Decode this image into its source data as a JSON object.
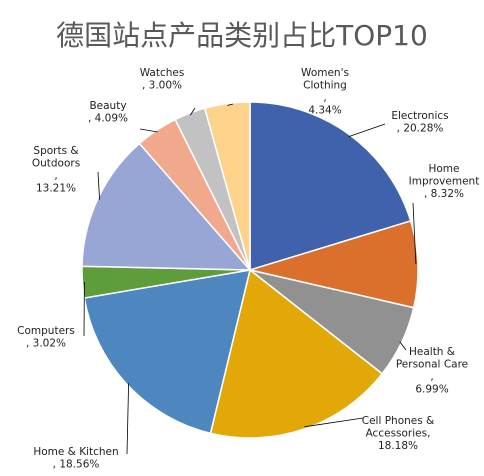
{
  "chart_data": {
    "type": "pie",
    "title": "德国站点产品类别占比TOP10",
    "start": "12 o'clock, clockwise",
    "slices": [
      {
        "name": "Electronics",
        "percent_label": "20.28%",
        "value": 20.28,
        "color": "#4062AD",
        "lines": [
          "Electronics",
          ", 20.28%"
        ]
      },
      {
        "name": "Home Improvement",
        "percent_label": "8.32%",
        "value": 8.32,
        "color": "#DB6F2C",
        "lines": [
          "Home",
          "Improvement",
          ", 8.32%"
        ]
      },
      {
        "name": "Health & Personal Care",
        "percent_label": "6.99%",
        "value": 6.99,
        "color": "#919191",
        "lines": [
          "Health &",
          "Personal Care",
          ",",
          "6.99%"
        ]
      },
      {
        "name": "Cell Phones & Accessories",
        "percent_label": "18.18%",
        "value": 18.18,
        "color": "#E2A808",
        "lines": [
          "Cell Phones &",
          "Accessories,",
          "18.18%"
        ]
      },
      {
        "name": "Home & Kitchen",
        "percent_label": "18.56%",
        "value": 18.56,
        "color": "#4E86C0",
        "lines": [
          "Home & Kitchen",
          ", 18.56%"
        ]
      },
      {
        "name": "Computers",
        "percent_label": "3.02%",
        "value": 3.02,
        "color": "#5D9E3B",
        "lines": [
          "Computers",
          ", 3.02%"
        ]
      },
      {
        "name": "Sports & Outdoors",
        "percent_label": "13.21%",
        "value": 13.21,
        "color": "#97A6D5",
        "lines": [
          "Sports &",
          "Outdoors",
          ",",
          "13.21%"
        ]
      },
      {
        "name": "Beauty",
        "percent_label": "4.09%",
        "value": 4.09,
        "color": "#F0A98C",
        "lines": [
          "Beauty",
          ", 4.09%"
        ]
      },
      {
        "name": "Watches",
        "percent_label": "3.00%",
        "value": 3.0,
        "color": "#C2C2C2",
        "lines": [
          "Watches",
          ", 3.00%"
        ]
      },
      {
        "name": "Women's Clothing",
        "percent_label": "4.34%",
        "value": 4.34,
        "color": "#FDD38B",
        "lines": [
          "Women's",
          "Clothing",
          ",",
          "4.34%"
        ]
      }
    ]
  }
}
